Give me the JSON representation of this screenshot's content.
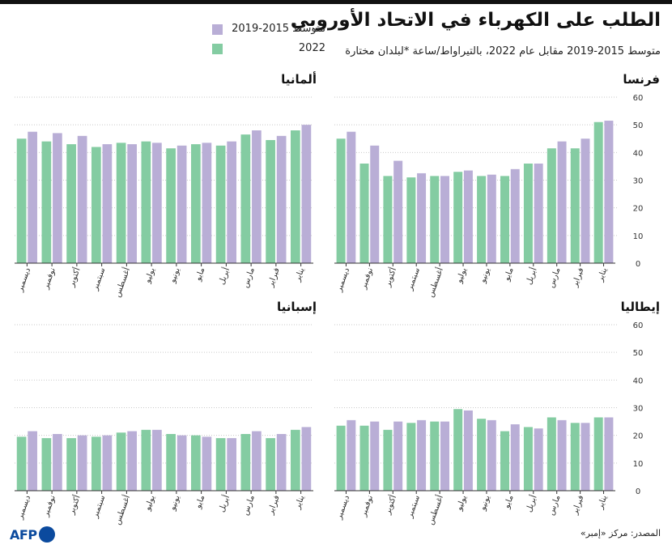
{
  "title": "الطلب على الكهرباء في الاتحاد الأوروبي",
  "subtitle": "متوسط 2015-2019 مقابل عام 2022، بالتيراواط/ساعة *لبلدان مختارة",
  "legend": {
    "avg": "متوسط 2015-2019",
    "y2022": "2022"
  },
  "source": "المصدر: مركز «إمبر»",
  "logo": "AFP",
  "colors": {
    "avg": "#b9aed6",
    "y2022": "#84cca2",
    "grid": "#c9c9c9",
    "axis": "#333333"
  },
  "chart_data": [
    {
      "type": "bar",
      "title": "فرنسا",
      "categories": [
        "يناير",
        "فبراير",
        "مارس",
        "أبريل",
        "مايو",
        "يونيو",
        "يوليو",
        "أغسطس",
        "سبتمبر",
        "أكتوبر",
        "نوفمبر",
        "ديسمبر"
      ],
      "series": [
        {
          "name": "2022",
          "values": [
            51,
            41.5,
            41.5,
            36,
            31.5,
            31.5,
            33,
            31.5,
            31,
            31.5,
            36,
            45
          ]
        },
        {
          "name": "متوسط 2015-2019",
          "values": [
            51.5,
            45,
            44,
            36,
            34,
            32,
            33.5,
            31.5,
            32.5,
            37,
            42.5,
            47.5
          ]
        }
      ],
      "ylim": [
        0,
        60
      ],
      "yticks": [
        0,
        10,
        20,
        30,
        40,
        50,
        60
      ],
      "grid": true,
      "y_axis_side": "right"
    },
    {
      "type": "bar",
      "title": "ألمانيا",
      "categories": [
        "يناير",
        "فبراير",
        "مارس",
        "أبريل",
        "مايو",
        "يونيو",
        "يوليو",
        "أغسطس",
        "سبتمبر",
        "أكتوبر",
        "نوفمبر",
        "ديسمبر"
      ],
      "series": [
        {
          "name": "2022",
          "values": [
            48,
            44.5,
            46.5,
            42.5,
            43,
            41.5,
            44,
            43.5,
            42,
            43,
            44,
            45
          ]
        },
        {
          "name": "متوسط 2015-2019",
          "values": [
            50,
            46,
            48,
            44,
            43.5,
            42.5,
            43.5,
            43,
            43,
            46,
            47,
            47.5
          ]
        }
      ],
      "ylim": [
        0,
        60
      ],
      "grid": true
    },
    {
      "type": "bar",
      "title": "إيطاليا",
      "categories": [
        "يناير",
        "فبراير",
        "مارس",
        "أبريل",
        "مايو",
        "يونيو",
        "يوليو",
        "أغسطس",
        "سبتمبر",
        "أكتوبر",
        "نوفمبر",
        "ديسمبر"
      ],
      "series": [
        {
          "name": "2022",
          "values": [
            26.5,
            24.5,
            26.5,
            23,
            21.5,
            26,
            29.5,
            25,
            24.5,
            22,
            23.5,
            23.5
          ]
        },
        {
          "name": "متوسط 2015-2019",
          "values": [
            26.5,
            24.5,
            25.5,
            22.5,
            24,
            25.5,
            29,
            25,
            25.5,
            25,
            25,
            25.5
          ]
        }
      ],
      "ylim": [
        0,
        60
      ],
      "yticks": [
        0,
        10,
        20,
        30,
        40,
        50,
        60
      ],
      "grid": true,
      "y_axis_side": "right"
    },
    {
      "type": "bar",
      "title": "إسبانيا",
      "categories": [
        "يناير",
        "فبراير",
        "مارس",
        "أبريل",
        "مايو",
        "يونيو",
        "يوليو",
        "أغسطس",
        "سبتمبر",
        "أكتوبر",
        "نوفمبر",
        "ديسمبر"
      ],
      "series": [
        {
          "name": "2022",
          "values": [
            22,
            19,
            20.5,
            19,
            20,
            20.5,
            22,
            21,
            19.5,
            19,
            19,
            19.5
          ]
        },
        {
          "name": "متوسط 2015-2019",
          "values": [
            23,
            20.5,
            21.5,
            19,
            19.5,
            20,
            22,
            21.5,
            20,
            20,
            20.5,
            21.5
          ]
        }
      ],
      "ylim": [
        0,
        60
      ],
      "grid": true
    }
  ]
}
